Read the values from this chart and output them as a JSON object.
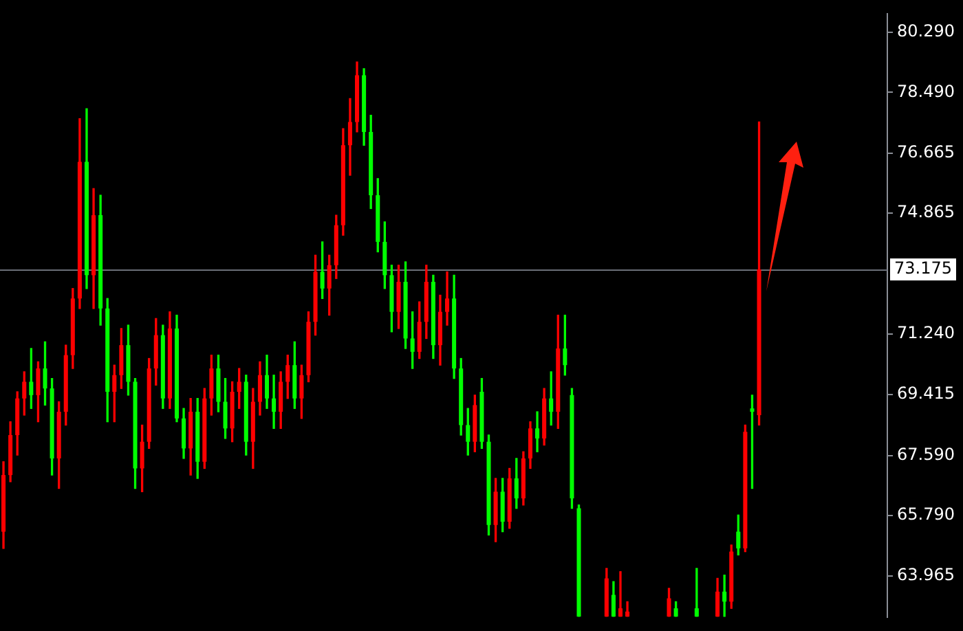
{
  "chart_data": {
    "type": "candlestick",
    "categories": [
      null,
      null,
      null,
      null,
      null,
      null,
      null,
      null,
      null,
      null,
      null,
      null,
      null,
      null,
      null,
      null,
      null,
      null,
      null,
      null,
      null,
      null,
      null,
      null,
      null,
      null,
      null,
      null,
      null,
      null,
      null,
      null,
      null,
      null,
      null,
      null,
      null,
      null,
      null,
      null,
      null,
      null,
      null,
      null,
      null,
      null,
      null,
      null,
      null,
      null,
      null,
      null,
      null,
      null,
      null,
      null,
      null,
      null,
      null,
      null,
      null,
      null,
      null,
      null,
      null,
      null,
      null,
      null,
      null,
      null,
      null,
      null,
      null,
      null,
      null,
      null,
      null,
      null,
      null,
      null,
      null,
      null,
      null,
      null,
      null,
      null,
      null,
      null,
      null,
      null,
      null,
      null,
      null,
      null,
      null,
      null,
      null,
      null,
      null,
      null,
      null,
      null,
      null,
      null,
      null,
      null,
      null,
      null,
      null,
      null,
      null,
      null,
      null,
      null,
      null,
      null,
      null,
      null,
      null,
      null,
      null,
      null,
      null,
      null,
      null,
      null,
      null,
      null
    ],
    "ohlc": [
      [
        65.3,
        67.4,
        64.8,
        67.0
      ],
      [
        67.0,
        68.6,
        66.8,
        68.2
      ],
      [
        68.2,
        69.5,
        67.6,
        69.3
      ],
      [
        69.3,
        70.1,
        68.8,
        69.8
      ],
      [
        69.8,
        70.8,
        69.0,
        69.4
      ],
      [
        69.4,
        70.4,
        68.6,
        70.2
      ],
      [
        70.2,
        71.0,
        69.1,
        69.6
      ],
      [
        69.6,
        69.9,
        67.0,
        67.5
      ],
      [
        67.5,
        69.2,
        66.6,
        68.9
      ],
      [
        68.9,
        70.9,
        68.5,
        70.6
      ],
      [
        70.6,
        72.6,
        70.2,
        72.3
      ],
      [
        72.3,
        77.7,
        72.0,
        76.4
      ],
      [
        76.4,
        78.0,
        72.6,
        73.0
      ],
      [
        73.0,
        75.6,
        72.0,
        74.8
      ],
      [
        74.8,
        75.4,
        71.5,
        72.0
      ],
      [
        72.0,
        72.3,
        68.6,
        69.5
      ],
      [
        69.5,
        70.3,
        68.6,
        70.0
      ],
      [
        70.0,
        71.4,
        69.6,
        70.9
      ],
      [
        70.9,
        71.5,
        69.4,
        69.8
      ],
      [
        69.8,
        69.9,
        66.6,
        67.2
      ],
      [
        67.2,
        68.5,
        66.5,
        68.0
      ],
      [
        68.0,
        70.5,
        67.8,
        70.2
      ],
      [
        70.2,
        71.7,
        69.7,
        71.2
      ],
      [
        71.2,
        71.5,
        69.0,
        69.3
      ],
      [
        69.3,
        71.9,
        69.0,
        71.4
      ],
      [
        71.4,
        71.8,
        68.6,
        68.7
      ],
      [
        68.7,
        69.0,
        67.5,
        67.8
      ],
      [
        67.8,
        69.3,
        67.0,
        68.9
      ],
      [
        68.9,
        69.3,
        66.9,
        67.4
      ],
      [
        67.4,
        69.6,
        67.2,
        69.3
      ],
      [
        69.3,
        70.6,
        68.8,
        70.2
      ],
      [
        70.2,
        70.6,
        68.9,
        69.2
      ],
      [
        69.2,
        69.9,
        68.1,
        68.4
      ],
      [
        68.4,
        69.8,
        68.0,
        69.5
      ],
      [
        69.5,
        70.2,
        69.0,
        69.8
      ],
      [
        69.8,
        70.0,
        67.6,
        68.0
      ],
      [
        68.0,
        69.6,
        67.2,
        69.2
      ],
      [
        69.2,
        70.4,
        68.8,
        70.0
      ],
      [
        70.0,
        70.6,
        69.0,
        69.3
      ],
      [
        69.3,
        70.0,
        68.4,
        68.9
      ],
      [
        68.9,
        70.1,
        68.4,
        69.8
      ],
      [
        69.8,
        70.6,
        69.3,
        70.3
      ],
      [
        70.3,
        71.0,
        69.0,
        69.3
      ],
      [
        69.3,
        70.3,
        68.7,
        70.0
      ],
      [
        70.0,
        71.9,
        69.8,
        71.6
      ],
      [
        71.6,
        73.6,
        71.2,
        73.1
      ],
      [
        73.1,
        74.0,
        72.3,
        72.6
      ],
      [
        72.6,
        73.6,
        71.8,
        73.3
      ],
      [
        73.3,
        74.8,
        72.9,
        74.5
      ],
      [
        74.5,
        77.4,
        74.2,
        76.9
      ],
      [
        76.9,
        78.3,
        76.0,
        77.6
      ],
      [
        77.6,
        79.4,
        77.3,
        79.0
      ],
      [
        79.0,
        79.2,
        76.9,
        77.3
      ],
      [
        77.3,
        77.8,
        75.0,
        75.4
      ],
      [
        75.4,
        75.9,
        73.7,
        74.0
      ],
      [
        74.0,
        74.6,
        72.6,
        73.0
      ],
      [
        73.0,
        73.3,
        71.3,
        71.9
      ],
      [
        71.9,
        73.3,
        71.4,
        72.8
      ],
      [
        72.8,
        73.4,
        70.8,
        71.1
      ],
      [
        71.1,
        71.9,
        70.2,
        70.7
      ],
      [
        70.7,
        72.2,
        70.5,
        71.6
      ],
      [
        71.6,
        73.3,
        71.1,
        72.8
      ],
      [
        72.8,
        73.0,
        70.5,
        70.9
      ],
      [
        70.9,
        72.4,
        70.3,
        71.9
      ],
      [
        71.9,
        73.1,
        71.5,
        72.3
      ],
      [
        72.3,
        73.0,
        69.9,
        70.2
      ],
      [
        70.2,
        70.5,
        68.2,
        68.5
      ],
      [
        68.5,
        69.0,
        67.6,
        68.0
      ],
      [
        68.0,
        69.4,
        67.7,
        69.1
      ],
      [
        69.5,
        69.9,
        67.8,
        68.0
      ],
      [
        68.0,
        68.2,
        65.2,
        65.5
      ],
      [
        65.5,
        66.9,
        65.0,
        66.5
      ],
      [
        66.5,
        66.9,
        65.3,
        65.6
      ],
      [
        65.6,
        67.2,
        65.4,
        66.9
      ],
      [
        66.9,
        67.5,
        66.0,
        66.3
      ],
      [
        66.3,
        67.7,
        66.1,
        67.5
      ],
      [
        67.5,
        68.6,
        67.2,
        68.4
      ],
      [
        68.4,
        68.9,
        67.7,
        68.1
      ],
      [
        68.1,
        69.6,
        67.9,
        69.3
      ],
      [
        69.3,
        70.1,
        68.5,
        68.9
      ],
      [
        68.9,
        71.8,
        68.4,
        70.8
      ],
      [
        70.8,
        71.8,
        70.0,
        70.3
      ],
      [
        69.4,
        69.6,
        66.0,
        66.3
      ],
      [
        66.0,
        66.1,
        62.75,
        62.75
      ],
      null,
      null,
      null,
      [
        62.75,
        64.2,
        62.75,
        63.9
      ],
      [
        63.4,
        63.8,
        62.75,
        62.75
      ],
      [
        62.75,
        64.1,
        62.75,
        63.0
      ],
      [
        62.75,
        63.2,
        62.75,
        62.9
      ],
      null,
      null,
      null,
      null,
      null,
      [
        62.75,
        63.6,
        62.75,
        63.3
      ],
      [
        63.0,
        63.2,
        62.75,
        62.75
      ],
      null,
      null,
      [
        63.0,
        64.2,
        62.75,
        62.75
      ],
      null,
      null,
      [
        62.75,
        63.9,
        62.75,
        63.5
      ],
      [
        63.5,
        64.0,
        62.75,
        63.2
      ],
      [
        63.2,
        64.9,
        63.0,
        64.7
      ],
      [
        65.3,
        65.8,
        64.6,
        64.8
      ],
      [
        64.8,
        68.5,
        64.7,
        68.3
      ],
      [
        69.0,
        69.4,
        66.6,
        68.9
      ],
      [
        68.8,
        77.6,
        68.5,
        73.175
      ],
      null,
      null,
      null,
      null,
      null,
      null,
      null,
      null,
      null,
      null,
      null,
      null,
      null,
      null,
      null,
      null,
      null,
      null
    ],
    "colors": [
      "#ff0000",
      "#ff0000",
      "#ff0000",
      "#ff0000",
      "#00ff00",
      "#ff0000",
      "#00ff00",
      "#00ff00",
      "#ff0000",
      "#ff0000",
      "#ff0000",
      "#ff0000",
      "#00ff00",
      "#ff0000",
      "#00ff00",
      "#00ff00",
      "#ff0000",
      "#ff0000",
      "#00ff00",
      "#00ff00",
      "#ff0000",
      "#ff0000",
      "#ff0000",
      "#00ff00",
      "#ff0000",
      "#00ff00",
      "#00ff00",
      "#ff0000",
      "#00ff00",
      "#ff0000",
      "#ff0000",
      "#00ff00",
      "#00ff00",
      "#ff0000",
      "#ff0000",
      "#00ff00",
      "#ff0000",
      "#ff0000",
      "#00ff00",
      "#00ff00",
      "#ff0000",
      "#ff0000",
      "#00ff00",
      "#ff0000",
      "#ff0000",
      "#ff0000",
      "#00ff00",
      "#ff0000",
      "#ff0000",
      "#ff0000",
      "#ff0000",
      "#ff0000",
      "#00ff00",
      "#00ff00",
      "#00ff00",
      "#00ff00",
      "#00ff00",
      "#ff0000",
      "#00ff00",
      "#00ff00",
      "#ff0000",
      "#ff0000",
      "#00ff00",
      "#ff0000",
      "#ff0000",
      "#00ff00",
      "#00ff00",
      "#00ff00",
      "#ff0000",
      "#00ff00",
      "#00ff00",
      "#ff0000",
      "#00ff00",
      "#ff0000",
      "#00ff00",
      "#ff0000",
      "#ff0000",
      "#00ff00",
      "#ff0000",
      "#00ff00",
      "#ff0000",
      "#00ff00",
      "#00ff00",
      "#00ff00",
      null,
      null,
      null,
      "#ff0000",
      "#00ff00",
      "#ff0000",
      "#ff0000",
      null,
      null,
      null,
      null,
      null,
      "#ff0000",
      "#00ff00",
      null,
      null,
      "#00ff00",
      null,
      null,
      "#ff0000",
      "#00ff00",
      "#ff0000",
      "#00ff00",
      "#ff0000",
      "#00ff00",
      "#ff0000",
      null,
      null,
      null,
      null,
      null,
      null,
      null,
      null,
      null,
      null,
      null,
      null,
      null,
      null,
      null,
      null,
      null,
      null
    ],
    "ylim": [
      62.74,
      80.84
    ],
    "yticks": [
      {
        "value": 80.29,
        "label": "80.290"
      },
      {
        "value": 78.49,
        "label": "78.490"
      },
      {
        "value": 76.665,
        "label": "76.665"
      },
      {
        "value": 74.865,
        "label": "74.865"
      },
      {
        "value": 71.24,
        "label": "71.240"
      },
      {
        "value": 69.415,
        "label": "69.415"
      },
      {
        "value": 67.59,
        "label": "67.590"
      },
      {
        "value": 65.79,
        "label": "65.790"
      },
      {
        "value": 63.965,
        "label": "63.965"
      }
    ],
    "ref_lines": [
      {
        "axis": "y",
        "value": 73.175,
        "label": "73.175",
        "color": "#6b6f78"
      }
    ],
    "tick_labels": "y",
    "grid": false,
    "legend": false
  }
}
